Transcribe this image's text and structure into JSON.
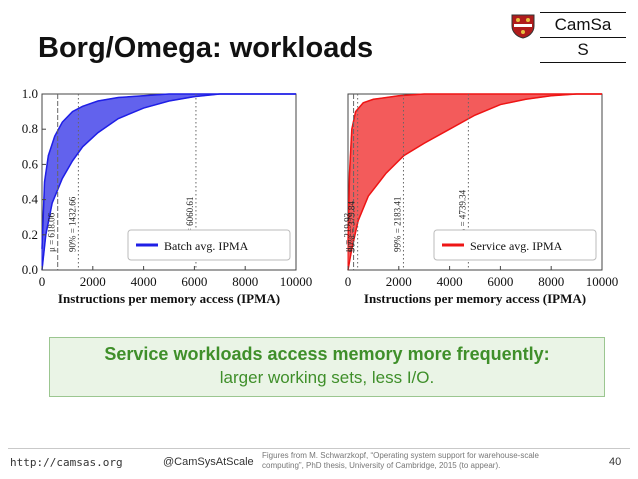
{
  "slide": {
    "title": "Borg/Omega: workloads",
    "logo": {
      "text_top": "CamSa",
      "text_bottom": "S",
      "shield_icon": "cambridge-crest-icon"
    },
    "callout": {
      "line1": "Service workloads access memory more frequently:",
      "line2": "larger working sets, less I/O."
    },
    "footer": {
      "url": "http://camsas.org",
      "handle": "@CamSysAtScale",
      "credit": "Figures from M. Schwarzkopf, “Operating system support for warehouse-scale computing”, PhD thesis, University of Cambridge, 2015 (to appear).",
      "page": "40"
    },
    "colors": {
      "batch": "#1f1fe6",
      "service": "#ee1515",
      "callout_text": "#3f8f2a"
    }
  },
  "chart_data": [
    {
      "type": "area",
      "xlabel": "Instructions per memory access (IPMA)",
      "ylabel": "",
      "xlim": [
        0,
        10000
      ],
      "ylim": [
        0,
        1.0
      ],
      "xticks": [
        "0",
        "2000",
        "4000",
        "6000",
        "8000",
        "10000"
      ],
      "yticks": [
        "0.0",
        "0.2",
        "0.4",
        "0.6",
        "0.8",
        "1.0"
      ],
      "grid": false,
      "legend": "bottom-right",
      "series": [
        {
          "name": "Batch avg. IPMA",
          "color": "#1f1fe6",
          "upper": [
            [
              0,
              0.12
            ],
            [
              100,
              0.5
            ],
            [
              250,
              0.65
            ],
            [
              500,
              0.76
            ],
            [
              800,
              0.84
            ],
            [
              1200,
              0.9
            ],
            [
              1600,
              0.93
            ],
            [
              2200,
              0.96
            ],
            [
              3000,
              0.98
            ],
            [
              4000,
              0.99
            ],
            [
              5000,
              1.0
            ],
            [
              10000,
              1.0
            ]
          ],
          "lower": [
            [
              0,
              0.0
            ],
            [
              150,
              0.2
            ],
            [
              400,
              0.38
            ],
            [
              800,
              0.52
            ],
            [
              1200,
              0.62
            ],
            [
              1600,
              0.7
            ],
            [
              2200,
              0.78
            ],
            [
              3000,
              0.86
            ],
            [
              4000,
              0.92
            ],
            [
              5000,
              0.96
            ],
            [
              6000,
              0.985
            ],
            [
              7000,
              1.0
            ],
            [
              10000,
              1.0
            ]
          ]
        }
      ],
      "markers": [
        {
          "x": 618.06,
          "label": "μ = 618.06"
        },
        {
          "x": 1432.66,
          "label": "90% = 1432.66"
        },
        {
          "x": 6060.61,
          "label": "99% = 6060.61"
        }
      ]
    },
    {
      "type": "area",
      "xlabel": "Instructions per memory access (IPMA)",
      "ylabel": "",
      "xlim": [
        0,
        10000
      ],
      "ylim": [
        0,
        1.0
      ],
      "xticks": [
        "0",
        "2000",
        "4000",
        "6000",
        "8000",
        "10000"
      ],
      "yticks": [],
      "grid": false,
      "legend": "bottom-right",
      "series": [
        {
          "name": "Service avg. IPMA",
          "color": "#ee1515",
          "upper": [
            [
              0,
              0.15
            ],
            [
              60,
              0.55
            ],
            [
              150,
              0.8
            ],
            [
              300,
              0.9
            ],
            [
              600,
              0.95
            ],
            [
              1000,
              0.97
            ],
            [
              2000,
              0.99
            ],
            [
              3000,
              1.0
            ],
            [
              10000,
              1.0
            ]
          ],
          "lower": [
            [
              0,
              0.0
            ],
            [
              150,
              0.12
            ],
            [
              400,
              0.28
            ],
            [
              800,
              0.42
            ],
            [
              1500,
              0.55
            ],
            [
              2200,
              0.65
            ],
            [
              3000,
              0.72
            ],
            [
              4000,
              0.8
            ],
            [
              5000,
              0.88
            ],
            [
              6000,
              0.94
            ],
            [
              7000,
              0.97
            ],
            [
              8000,
              0.99
            ],
            [
              9000,
              1.0
            ],
            [
              10000,
              1.0
            ]
          ]
        }
      ],
      "markers": [
        {
          "x": 219.93,
          "label": "μ = 219.93"
        },
        {
          "x": 379.84,
          "label": "90% = 379.84"
        },
        {
          "x": 2183.41,
          "label": "99% = 2183.41"
        },
        {
          "x": 4739.34,
          "label": "99.9% = 4739.34"
        }
      ]
    }
  ]
}
